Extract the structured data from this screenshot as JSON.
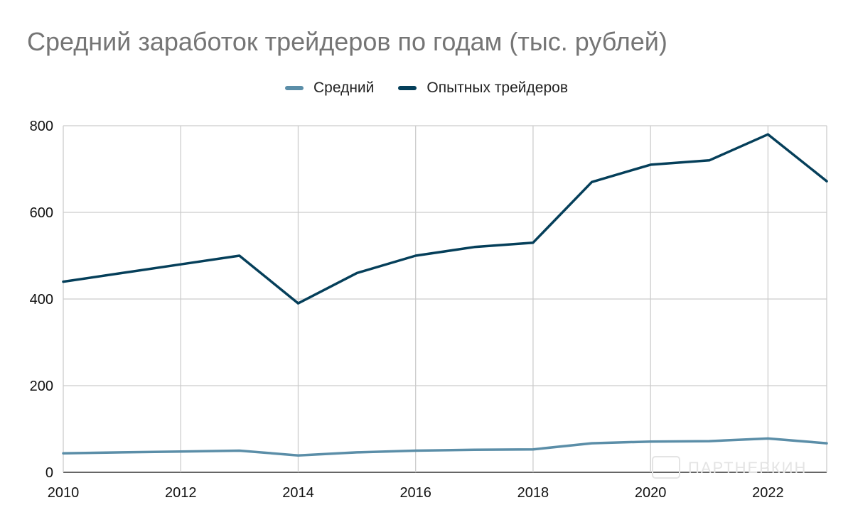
{
  "chart_data": {
    "type": "line",
    "title": "Средний заработок трейдеров по годам (тыс. рублей)",
    "xlabel": "",
    "ylabel": "",
    "x": [
      2010,
      2011,
      2012,
      2013,
      2014,
      2015,
      2016,
      2017,
      2018,
      2019,
      2020,
      2021,
      2022,
      2023
    ],
    "x_ticks": [
      "2010",
      "2012",
      "2014",
      "2016",
      "2018",
      "2020",
      "2022"
    ],
    "y_ticks": [
      "0",
      "200",
      "400",
      "600",
      "800"
    ],
    "xlim": [
      2010,
      2023
    ],
    "ylim": [
      0,
      800
    ],
    "grid": true,
    "legend_position": "top",
    "series": [
      {
        "name": "Средний",
        "color": "#5b8ea8",
        "values": [
          44,
          46,
          48,
          50,
          39,
          46,
          50,
          52,
          53,
          67,
          71,
          72,
          78,
          67
        ]
      },
      {
        "name": "Опытных трейдеров",
        "color": "#053f5a",
        "values": [
          440,
          460,
          480,
          500,
          390,
          460,
          500,
          520,
          530,
          670,
          710,
          720,
          780,
          672
        ]
      }
    ]
  },
  "watermark": "ПАРТНЕРКИН"
}
